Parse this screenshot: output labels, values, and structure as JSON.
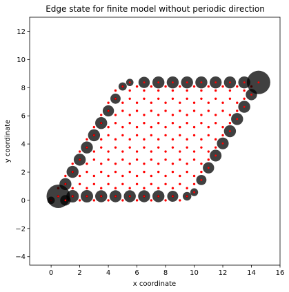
{
  "chart_data": {
    "type": "scatter",
    "title": "Edge state for finite model without periodic direction",
    "xlabel": "x coordinate",
    "ylabel": "y coordinate",
    "xlim": [
      -1.5,
      16
    ],
    "ylim": [
      -4.6,
      13
    ],
    "xticks": [
      "0",
      "2",
      "4",
      "6",
      "8",
      "10",
      "12",
      "14",
      "16"
    ],
    "yticks": [
      "−4",
      "−2",
      "0",
      "2",
      "4",
      "6",
      "8",
      "10",
      "12"
    ],
    "grid": false,
    "colors": {
      "site": "#ff0000",
      "edge": "#000000",
      "edge_alpha": 0.75
    },
    "lattice": {
      "nx": 10,
      "ny": 10,
      "a1": [
        1.0,
        0.0
      ],
      "a2": [
        0.5,
        0.866
      ],
      "sub_a": [
        0.0,
        0.0
      ],
      "sub_b": [
        0.5,
        0.289
      ]
    },
    "edge_weights": [
      {
        "x": 0.0,
        "y": 0.0,
        "w": 0.05
      },
      {
        "x": 0.5,
        "y": 0.289,
        "w": 1.0
      },
      {
        "x": 1.0,
        "y": 0.0,
        "w": 0.14
      },
      {
        "x": 1.5,
        "y": 0.289,
        "w": 0.22
      },
      {
        "x": 2.5,
        "y": 0.289,
        "w": 0.22
      },
      {
        "x": 3.5,
        "y": 0.289,
        "w": 0.2
      },
      {
        "x": 4.5,
        "y": 0.289,
        "w": 0.2
      },
      {
        "x": 5.5,
        "y": 0.289,
        "w": 0.2
      },
      {
        "x": 6.5,
        "y": 0.289,
        "w": 0.2
      },
      {
        "x": 7.5,
        "y": 0.289,
        "w": 0.2
      },
      {
        "x": 8.5,
        "y": 0.289,
        "w": 0.16
      },
      {
        "x": 9.5,
        "y": 0.289,
        "w": 0.08
      },
      {
        "x": 1.0,
        "y": 1.155,
        "w": 0.2
      },
      {
        "x": 1.5,
        "y": 2.021,
        "w": 0.2
      },
      {
        "x": 2.0,
        "y": 2.887,
        "w": 0.2
      },
      {
        "x": 2.5,
        "y": 3.753,
        "w": 0.2
      },
      {
        "x": 3.0,
        "y": 4.619,
        "w": 0.2
      },
      {
        "x": 3.5,
        "y": 5.485,
        "w": 0.2
      },
      {
        "x": 4.0,
        "y": 6.351,
        "w": 0.17
      },
      {
        "x": 4.5,
        "y": 7.217,
        "w": 0.13
      },
      {
        "x": 5.0,
        "y": 8.083,
        "w": 0.07
      },
      {
        "x": 5.5,
        "y": 8.371,
        "w": 0.05
      },
      {
        "x": 6.5,
        "y": 8.371,
        "w": 0.17
      },
      {
        "x": 7.5,
        "y": 8.371,
        "w": 0.2
      },
      {
        "x": 8.5,
        "y": 8.371,
        "w": 0.2
      },
      {
        "x": 9.5,
        "y": 8.371,
        "w": 0.2
      },
      {
        "x": 10.5,
        "y": 8.371,
        "w": 0.2
      },
      {
        "x": 11.5,
        "y": 8.371,
        "w": 0.2
      },
      {
        "x": 12.5,
        "y": 8.371,
        "w": 0.2
      },
      {
        "x": 13.5,
        "y": 8.371,
        "w": 0.2
      },
      {
        "x": 14.5,
        "y": 8.371,
        "w": 1.0
      },
      {
        "x": 14.0,
        "y": 7.505,
        "w": 0.17
      },
      {
        "x": 13.5,
        "y": 6.64,
        "w": 0.2
      },
      {
        "x": 13.0,
        "y": 5.774,
        "w": 0.2
      },
      {
        "x": 12.5,
        "y": 4.908,
        "w": 0.2
      },
      {
        "x": 12.0,
        "y": 4.042,
        "w": 0.19
      },
      {
        "x": 11.5,
        "y": 3.176,
        "w": 0.19
      },
      {
        "x": 11.0,
        "y": 2.31,
        "w": 0.17
      },
      {
        "x": 10.5,
        "y": 1.444,
        "w": 0.13
      },
      {
        "x": 10.0,
        "y": 0.578,
        "w": 0.06
      }
    ]
  }
}
